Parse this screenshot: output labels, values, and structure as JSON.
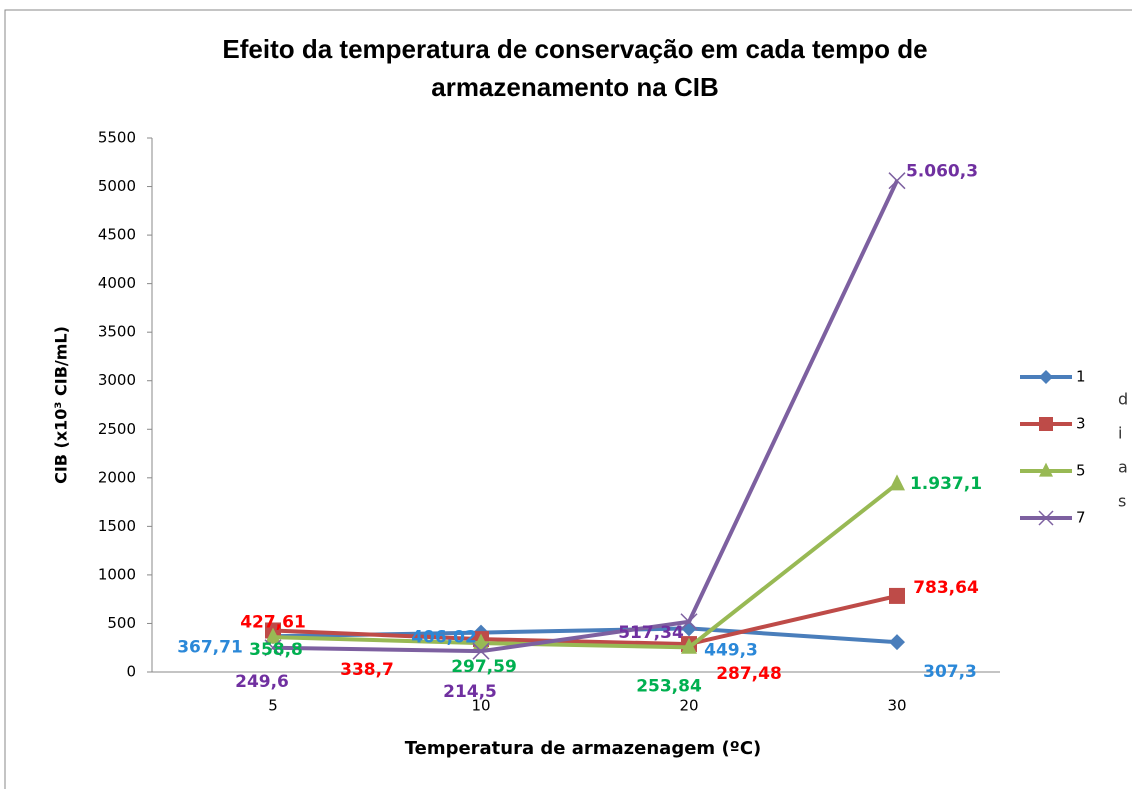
{
  "chart_data": {
    "type": "line",
    "title": "Efeito da temperatura de conservação em cada tempo de armazenamento na CIB",
    "x_label": "Temperatura de armazenagem (ºC)",
    "y_label": "CIB (x10³ CIB/mL)",
    "categories": [
      "5",
      "10",
      "20",
      "30"
    ],
    "series": [
      {
        "name": "1",
        "color": "#4a7ebb",
        "label_color": "#2b88d8",
        "marker": "diamond",
        "values": [
          367.71,
          406.02,
          449.3,
          307.3
        ],
        "value_labels": [
          "367,71",
          "406,02",
          "449,3",
          "307,3"
        ]
      },
      {
        "name": "3",
        "color": "#be4b48",
        "label_color": "#ff0000",
        "marker": "square",
        "values": [
          427.61,
          338.7,
          287.48,
          783.64
        ],
        "value_labels": [
          "427,61",
          "338,7",
          "287,48",
          "783,64"
        ]
      },
      {
        "name": "5",
        "color": "#98b954",
        "label_color": "#00b050",
        "marker": "triangle",
        "values": [
          358.8,
          297.59,
          253.84,
          1937.1
        ],
        "value_labels": [
          "358,8",
          "297,59",
          "253,84",
          "1.937,1"
        ]
      },
      {
        "name": "7",
        "color": "#7d60a0",
        "label_color": "#7030a0",
        "marker": "x",
        "values": [
          249.6,
          214.5,
          517.34,
          5060.3
        ],
        "value_labels": [
          "249,6",
          "214,5",
          "517,34",
          "5.060,3"
        ]
      }
    ],
    "ylim": [
      0,
      5500
    ],
    "yticks": [
      0,
      500,
      1000,
      1500,
      2000,
      2500,
      3000,
      3500,
      4000,
      4500,
      5000,
      5500
    ],
    "grid": false,
    "legend": "right",
    "side_text": [
      "d",
      "i",
      "a",
      "s"
    ]
  }
}
